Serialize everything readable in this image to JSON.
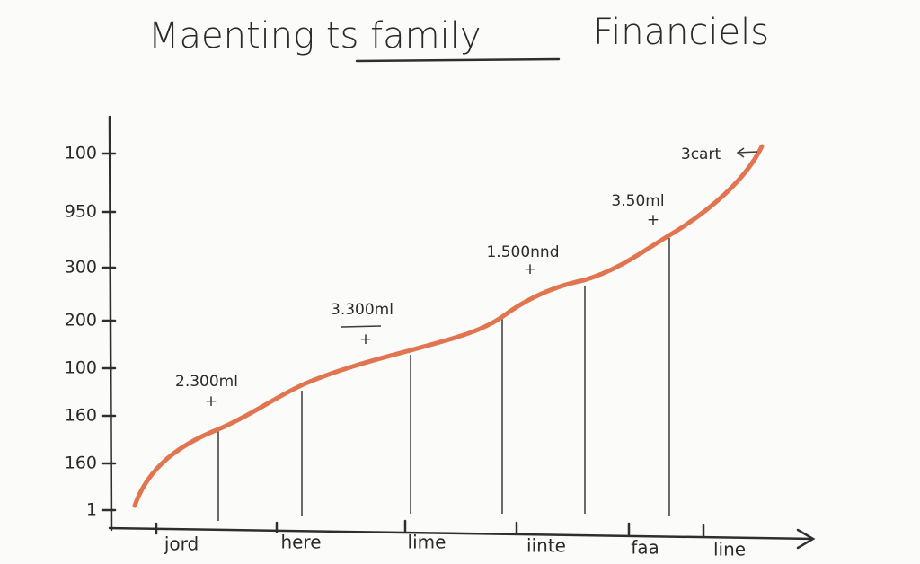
{
  "title": {
    "left": "Maenting ts family",
    "right": "Financiels"
  },
  "y_labels": [
    "100",
    "950",
    "300",
    "200",
    "100",
    "160",
    "160",
    "1"
  ],
  "x_labels": [
    "jord",
    "here",
    "lime",
    "iinte",
    "faa",
    "line"
  ],
  "annotations": [
    "2.300ml",
    "3.300ml",
    "1.500nnd",
    "3.50ml",
    "3cart"
  ]
}
